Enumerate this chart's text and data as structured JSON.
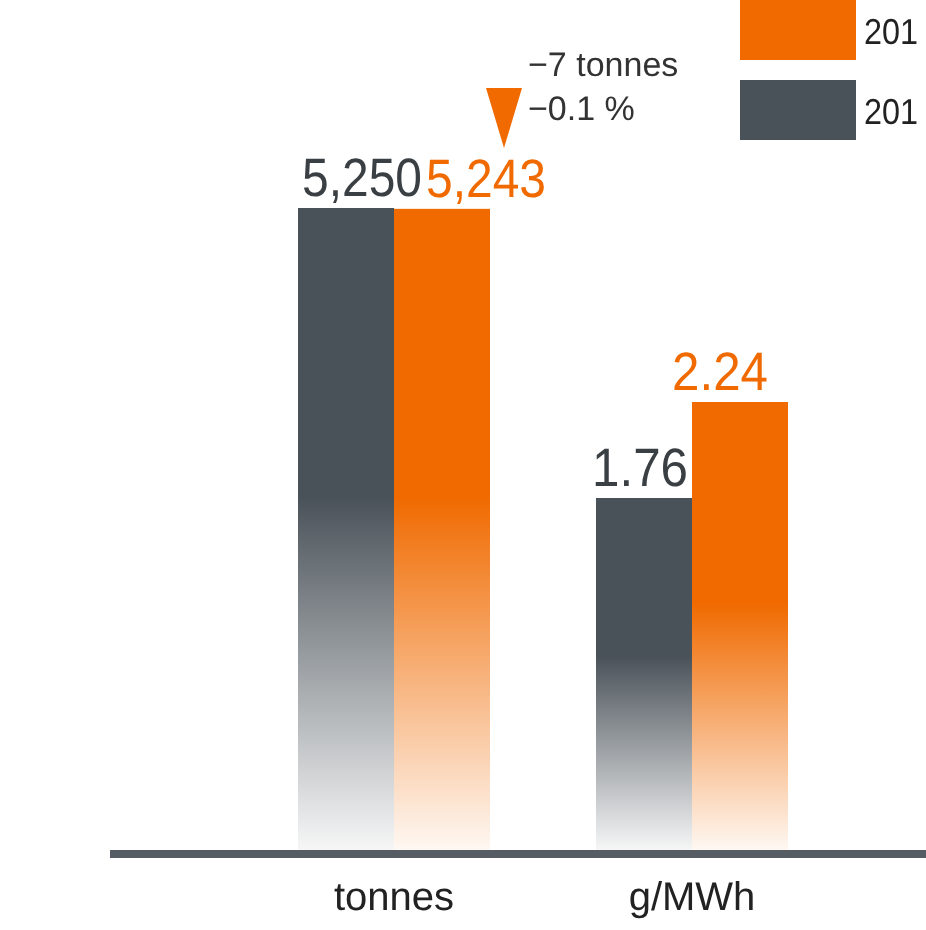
{
  "chart_data": [
    {
      "type": "bar",
      "categories": [
        "tonnes"
      ],
      "series": [
        {
          "name": "201",
          "color": "#4a5259",
          "values": [
            5250
          ],
          "value_labels": [
            "5,250"
          ]
        },
        {
          "name": "201",
          "color": "#f06a00",
          "values": [
            5243
          ],
          "value_labels": [
            "5,243"
          ]
        }
      ],
      "legend": "top right",
      "annotations": [
        "−7 tonnes",
        "−0.1 %"
      ]
    },
    {
      "type": "bar",
      "categories": [
        "g/MWh"
      ],
      "series": [
        {
          "color": "#4a5259",
          "values": [
            1.76
          ],
          "value_labels": [
            "1.76"
          ]
        },
        {
          "color": "#f06a00",
          "values": [
            2.24
          ],
          "value_labels": [
            "2.24"
          ]
        }
      ]
    }
  ]
}
